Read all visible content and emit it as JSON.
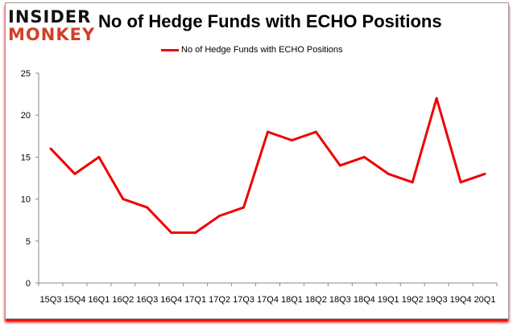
{
  "logo": {
    "line1": "INSIDER",
    "line2": "MONKEY"
  },
  "chart_data": {
    "type": "line",
    "title": "No of Hedge Funds with ECHO Positions",
    "xlabel": "",
    "ylabel": "",
    "categories": [
      "15Q3",
      "15Q4",
      "16Q1",
      "16Q2",
      "16Q3",
      "16Q4",
      "17Q1",
      "17Q2",
      "17Q3",
      "17Q4",
      "18Q1",
      "18Q2",
      "18Q3",
      "18Q4",
      "19Q1",
      "19Q2",
      "19Q3",
      "19Q4",
      "20Q1"
    ],
    "series": [
      {
        "name": "No of Hedge Funds with ECHO Positions",
        "color": "#ee0000",
        "values": [
          16,
          13,
          15,
          10,
          9,
          6,
          6,
          8,
          9,
          18,
          17,
          18,
          14,
          15,
          13,
          12,
          22,
          12,
          13
        ]
      }
    ],
    "ylim": [
      0,
      25
    ],
    "yticks": [
      0,
      5,
      10,
      15,
      20,
      25
    ],
    "grid": false,
    "legend": "top"
  }
}
